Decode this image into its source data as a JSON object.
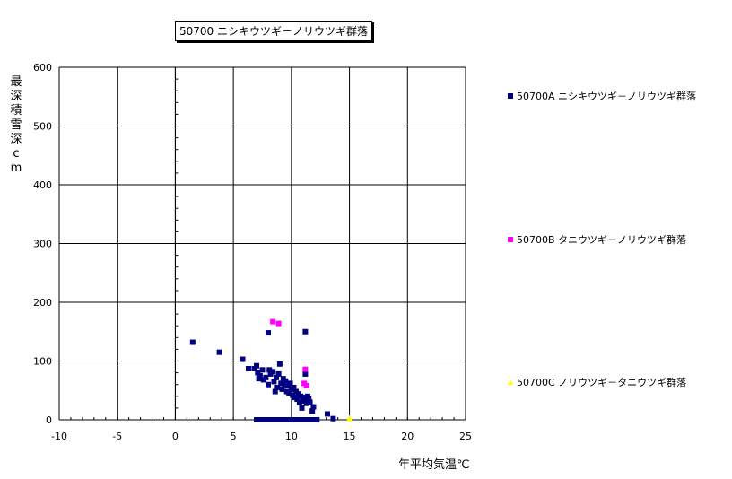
{
  "chart_data": {
    "type": "scatter",
    "title": "50700 ニシキウツギ－ノリウツギ群落",
    "xlabel": "年平均気温℃",
    "ylabel": "最深積雪深cm",
    "xlim": [
      -10,
      25
    ],
    "ylim": [
      0,
      600
    ],
    "xticks": [
      -10,
      -5,
      0,
      5,
      10,
      15,
      20,
      25
    ],
    "yticks": [
      0,
      100,
      200,
      300,
      400,
      500,
      600
    ],
    "grid": true,
    "legend_position": "right",
    "series": [
      {
        "name": "50700A ニシキウツギ－ノリウツギ群落",
        "color": "#000080",
        "marker": "square",
        "points": [
          [
            1.5,
            132
          ],
          [
            3.8,
            115
          ],
          [
            5.8,
            103
          ],
          [
            6.3,
            87
          ],
          [
            6.8,
            87
          ],
          [
            7.0,
            92
          ],
          [
            7.1,
            80
          ],
          [
            7.2,
            70
          ],
          [
            7.3,
            75
          ],
          [
            7.5,
            85
          ],
          [
            7.6,
            68
          ],
          [
            7.8,
            72
          ],
          [
            8.0,
            60
          ],
          [
            8.0,
            148
          ],
          [
            8.1,
            85
          ],
          [
            8.2,
            78
          ],
          [
            8.4,
            82
          ],
          [
            8.5,
            65
          ],
          [
            8.6,
            48
          ],
          [
            8.7,
            72
          ],
          [
            8.8,
            55
          ],
          [
            8.9,
            78
          ],
          [
            9.0,
            95
          ],
          [
            9.1,
            62
          ],
          [
            9.2,
            52
          ],
          [
            9.3,
            70
          ],
          [
            9.4,
            60
          ],
          [
            9.5,
            66
          ],
          [
            9.6,
            48
          ],
          [
            9.7,
            58
          ],
          [
            9.8,
            45
          ],
          [
            9.9,
            62
          ],
          [
            10.0,
            52
          ],
          [
            10.1,
            42
          ],
          [
            10.2,
            55
          ],
          [
            10.3,
            38
          ],
          [
            10.4,
            48
          ],
          [
            10.5,
            35
          ],
          [
            10.6,
            44
          ],
          [
            10.7,
            30
          ],
          [
            10.8,
            40
          ],
          [
            10.9,
            20
          ],
          [
            11.0,
            38
          ],
          [
            11.1,
            32
          ],
          [
            11.2,
            150
          ],
          [
            11.2,
            78
          ],
          [
            11.3,
            28
          ],
          [
            11.4,
            40
          ],
          [
            11.5,
            36
          ],
          [
            11.6,
            30
          ],
          [
            11.8,
            15
          ],
          [
            11.9,
            22
          ],
          [
            13.1,
            10
          ],
          [
            13.6,
            2
          ],
          [
            7.0,
            0
          ],
          [
            7.2,
            0
          ],
          [
            7.4,
            0
          ],
          [
            7.6,
            0
          ],
          [
            7.8,
            0
          ],
          [
            8.0,
            0
          ],
          [
            8.2,
            0
          ],
          [
            8.4,
            0
          ],
          [
            8.6,
            0
          ],
          [
            8.8,
            0
          ],
          [
            9.0,
            0
          ],
          [
            9.2,
            0
          ],
          [
            9.4,
            0
          ],
          [
            9.6,
            0
          ],
          [
            9.8,
            0
          ],
          [
            10.0,
            0
          ],
          [
            10.2,
            0
          ],
          [
            10.4,
            0
          ],
          [
            10.6,
            0
          ],
          [
            10.8,
            0
          ],
          [
            11.0,
            0
          ],
          [
            11.2,
            0
          ],
          [
            11.4,
            0
          ],
          [
            11.6,
            0
          ],
          [
            11.8,
            0
          ],
          [
            12.0,
            0
          ],
          [
            12.2,
            0
          ]
        ]
      },
      {
        "name": "50700B タニウツギ－ノリウツギ群落",
        "color": "#ff00ff",
        "marker": "square",
        "points": [
          [
            8.4,
            167
          ],
          [
            8.9,
            164
          ],
          [
            11.1,
            62
          ],
          [
            11.3,
            58
          ],
          [
            11.2,
            86
          ]
        ]
      },
      {
        "name": "50700C ノリウツギ－タニウツギ群落",
        "color": "#ffff00",
        "marker": "triangle",
        "points": [
          [
            15.0,
            2
          ]
        ]
      }
    ]
  }
}
